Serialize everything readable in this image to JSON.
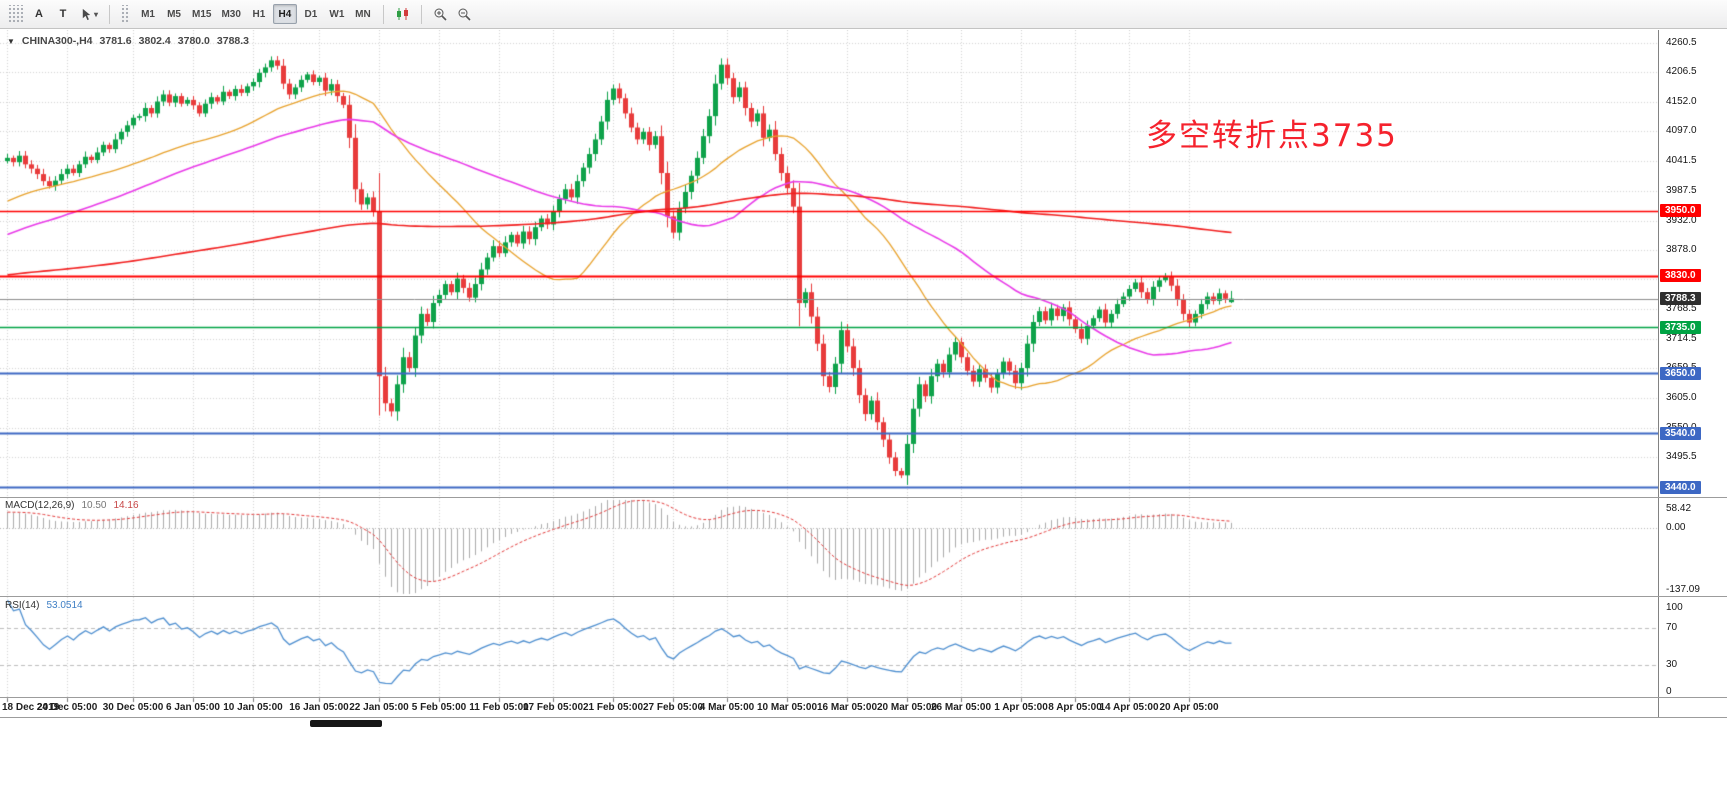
{
  "toolbar": {
    "label_tool": "A",
    "text_tool": "T",
    "timeframes": [
      "M1",
      "M5",
      "M15",
      "M30",
      "H1",
      "H4",
      "D1",
      "W1",
      "MN"
    ],
    "active_timeframe": "H4"
  },
  "chart": {
    "header": {
      "symbol_period": "CHINA300-,H4",
      "open": "3781.6",
      "high": "3802.4",
      "low": "3780.0",
      "close": "3788.3"
    },
    "annotation": {
      "text": "多空转折点3735",
      "color": "#F5222D"
    }
  },
  "chart_data": {
    "type": "candlestick",
    "symbol": "CHINA300-",
    "period": "H4",
    "current_ohlc": {
      "open": 3781.6,
      "high": 3802.4,
      "low": 3780.0,
      "close": 3788.3
    },
    "y_axis": {
      "price_min": 3422.0,
      "price_max": 4284.0,
      "ticks": [
        4260.5,
        4206.5,
        4152.0,
        4097.0,
        4041.5,
        3987.5,
        3932.0,
        3878.0,
        3823.5,
        3768.5,
        3714.5,
        3659.5,
        3605.0,
        3550.0,
        3495.5,
        3441.0
      ]
    },
    "x_ticks": [
      {
        "label": "18 Dec 2019",
        "i": 0
      },
      {
        "label": "24 Dec 05:00",
        "i": 10
      },
      {
        "label": "30 Dec 05:00",
        "i": 21
      },
      {
        "label": "6 Jan 05:00",
        "i": 31
      },
      {
        "label": "10 Jan 05:00",
        "i": 41
      },
      {
        "label": "16 Jan 05:00",
        "i": 52
      },
      {
        "label": "22 Jan 05:00",
        "i": 62
      },
      {
        "label": "5 Feb 05:00",
        "i": 72
      },
      {
        "label": "11 Feb 05:00",
        "i": 82
      },
      {
        "label": "17 Feb 05:00",
        "i": 91
      },
      {
        "label": "21 Feb 05:00",
        "i": 101
      },
      {
        "label": "27 Feb 05:00",
        "i": 111
      },
      {
        "label": "4 Mar 05:00",
        "i": 120
      },
      {
        "label": "10 Mar 05:00",
        "i": 130
      },
      {
        "label": "16 Mar 05:00",
        "i": 140
      },
      {
        "label": "20 Mar 05:00",
        "i": 150
      },
      {
        "label": "26 Mar 05:00",
        "i": 159
      },
      {
        "label": "1 Apr 05:00",
        "i": 169
      },
      {
        "label": "8 Apr 05:00",
        "i": 178
      },
      {
        "label": "14 Apr 05:00",
        "i": 187
      },
      {
        "label": "20 Apr 05:00",
        "i": 197
      }
    ],
    "closes": [
      4048,
      4040,
      4052,
      4036,
      4028,
      4018,
      4005,
      3996,
      4006,
      4018,
      4028,
      4020,
      4036,
      4050,
      4044,
      4058,
      4072,
      4064,
      4082,
      4096,
      4108,
      4122,
      4125,
      4140,
      4130,
      4152,
      4165,
      4150,
      4162,
      4148,
      4155,
      4145,
      4130,
      4148,
      4160,
      4152,
      4170,
      4162,
      4175,
      4168,
      4180,
      4188,
      4205,
      4215,
      4228,
      4218,
      4185,
      4165,
      4178,
      4192,
      4202,
      4188,
      4196,
      4172,
      4184,
      4162,
      4146,
      4085,
      3990,
      3962,
      3975,
      3950,
      3645,
      3595,
      3580,
      3630,
      3680,
      3660,
      3720,
      3760,
      3745,
      3780,
      3795,
      3815,
      3800,
      3825,
      3808,
      3790,
      3815,
      3842,
      3864,
      3885,
      3872,
      3892,
      3906,
      3890,
      3912,
      3898,
      3920,
      3936,
      3925,
      3950,
      3972,
      3990,
      3975,
      4005,
      4030,
      4055,
      4082,
      4115,
      4155,
      4176,
      4158,
      4130,
      4104,
      4082,
      4096,
      4072,
      4088,
      4020,
      3940,
      3910,
      3955,
      3985,
      4015,
      4048,
      4088,
      4125,
      4185,
      4220,
      4195,
      4160,
      4178,
      4140,
      4115,
      4130,
      4085,
      4100,
      4055,
      4020,
      3992,
      3958,
      3780,
      3800,
      3755,
      3705,
      3645,
      3625,
      3668,
      3730,
      3700,
      3660,
      3610,
      3575,
      3600,
      3560,
      3528,
      3495,
      3470,
      3462,
      3520,
      3585,
      3630,
      3608,
      3645,
      3668,
      3652,
      3685,
      3708,
      3680,
      3655,
      3635,
      3658,
      3642,
      3624,
      3650,
      3672,
      3655,
      3632,
      3660,
      3705,
      3745,
      3765,
      3748,
      3770,
      3756,
      3772,
      3750,
      3732,
      3714,
      3738,
      3752,
      3768,
      3744,
      3760,
      3778,
      3792,
      3806,
      3818,
      3800,
      3786,
      3810,
      3822,
      3828,
      3812,
      3786,
      3760,
      3744,
      3760,
      3778,
      3792,
      3784,
      3798,
      3788,
      3788.3
    ],
    "colors": {
      "up": "#0EA24A",
      "down": "#E83B3B",
      "grid": "#D4D4D4",
      "ma": [
        {
          "period": 34,
          "color": "#E8A22C",
          "width": 1.3
        },
        {
          "period": 60,
          "color": "#E93BE9",
          "width": 1.6
        },
        {
          "period": 200,
          "color": "#F21F1F",
          "width": 1.6
        }
      ]
    },
    "hlines": [
      {
        "price": 3950.0,
        "label": "3950.0",
        "color": "#FF0000",
        "width": 1.6
      },
      {
        "price": 3830.0,
        "label": "3830.0",
        "color": "#FF0000",
        "width": 2.2
      },
      {
        "price": 3788.3,
        "label": "3788.3",
        "color": "#8C8C8C",
        "width": 1,
        "badge": "#2E2E2E",
        "current": true
      },
      {
        "price": 3735.0,
        "label": "3735.0",
        "color": "#00A344",
        "width": 1.6
      },
      {
        "price": 3650.0,
        "label": "3650.0",
        "color": "#3D68C4",
        "width": 2
      },
      {
        "price": 3540.0,
        "label": "3540.0",
        "color": "#3D68C4",
        "width": 2
      },
      {
        "price": 3440.0,
        "label": "3440.0",
        "color": "#3D68C4",
        "width": 2
      }
    ],
    "indicators": {
      "macd": {
        "label": "MACD(12,26,9)",
        "values": [
          "10.50",
          "14.16"
        ],
        "fast": 12,
        "slow": 26,
        "signal": 9,
        "scale": {
          "max": 58.42,
          "zero": 0.0,
          "min": -137.09
        },
        "labels": [
          "58.42",
          "0.00",
          "-137.09"
        ],
        "histogram_color": "#ABABAB",
        "signal_color": "#E43B3B"
      },
      "rsi": {
        "label": "RSI(14)",
        "value": "53.0514",
        "period": 14,
        "levels": [
          70,
          30
        ],
        "labels": [
          "100",
          "70",
          "30",
          "0"
        ],
        "line_color": "#4E8FD0"
      }
    }
  }
}
